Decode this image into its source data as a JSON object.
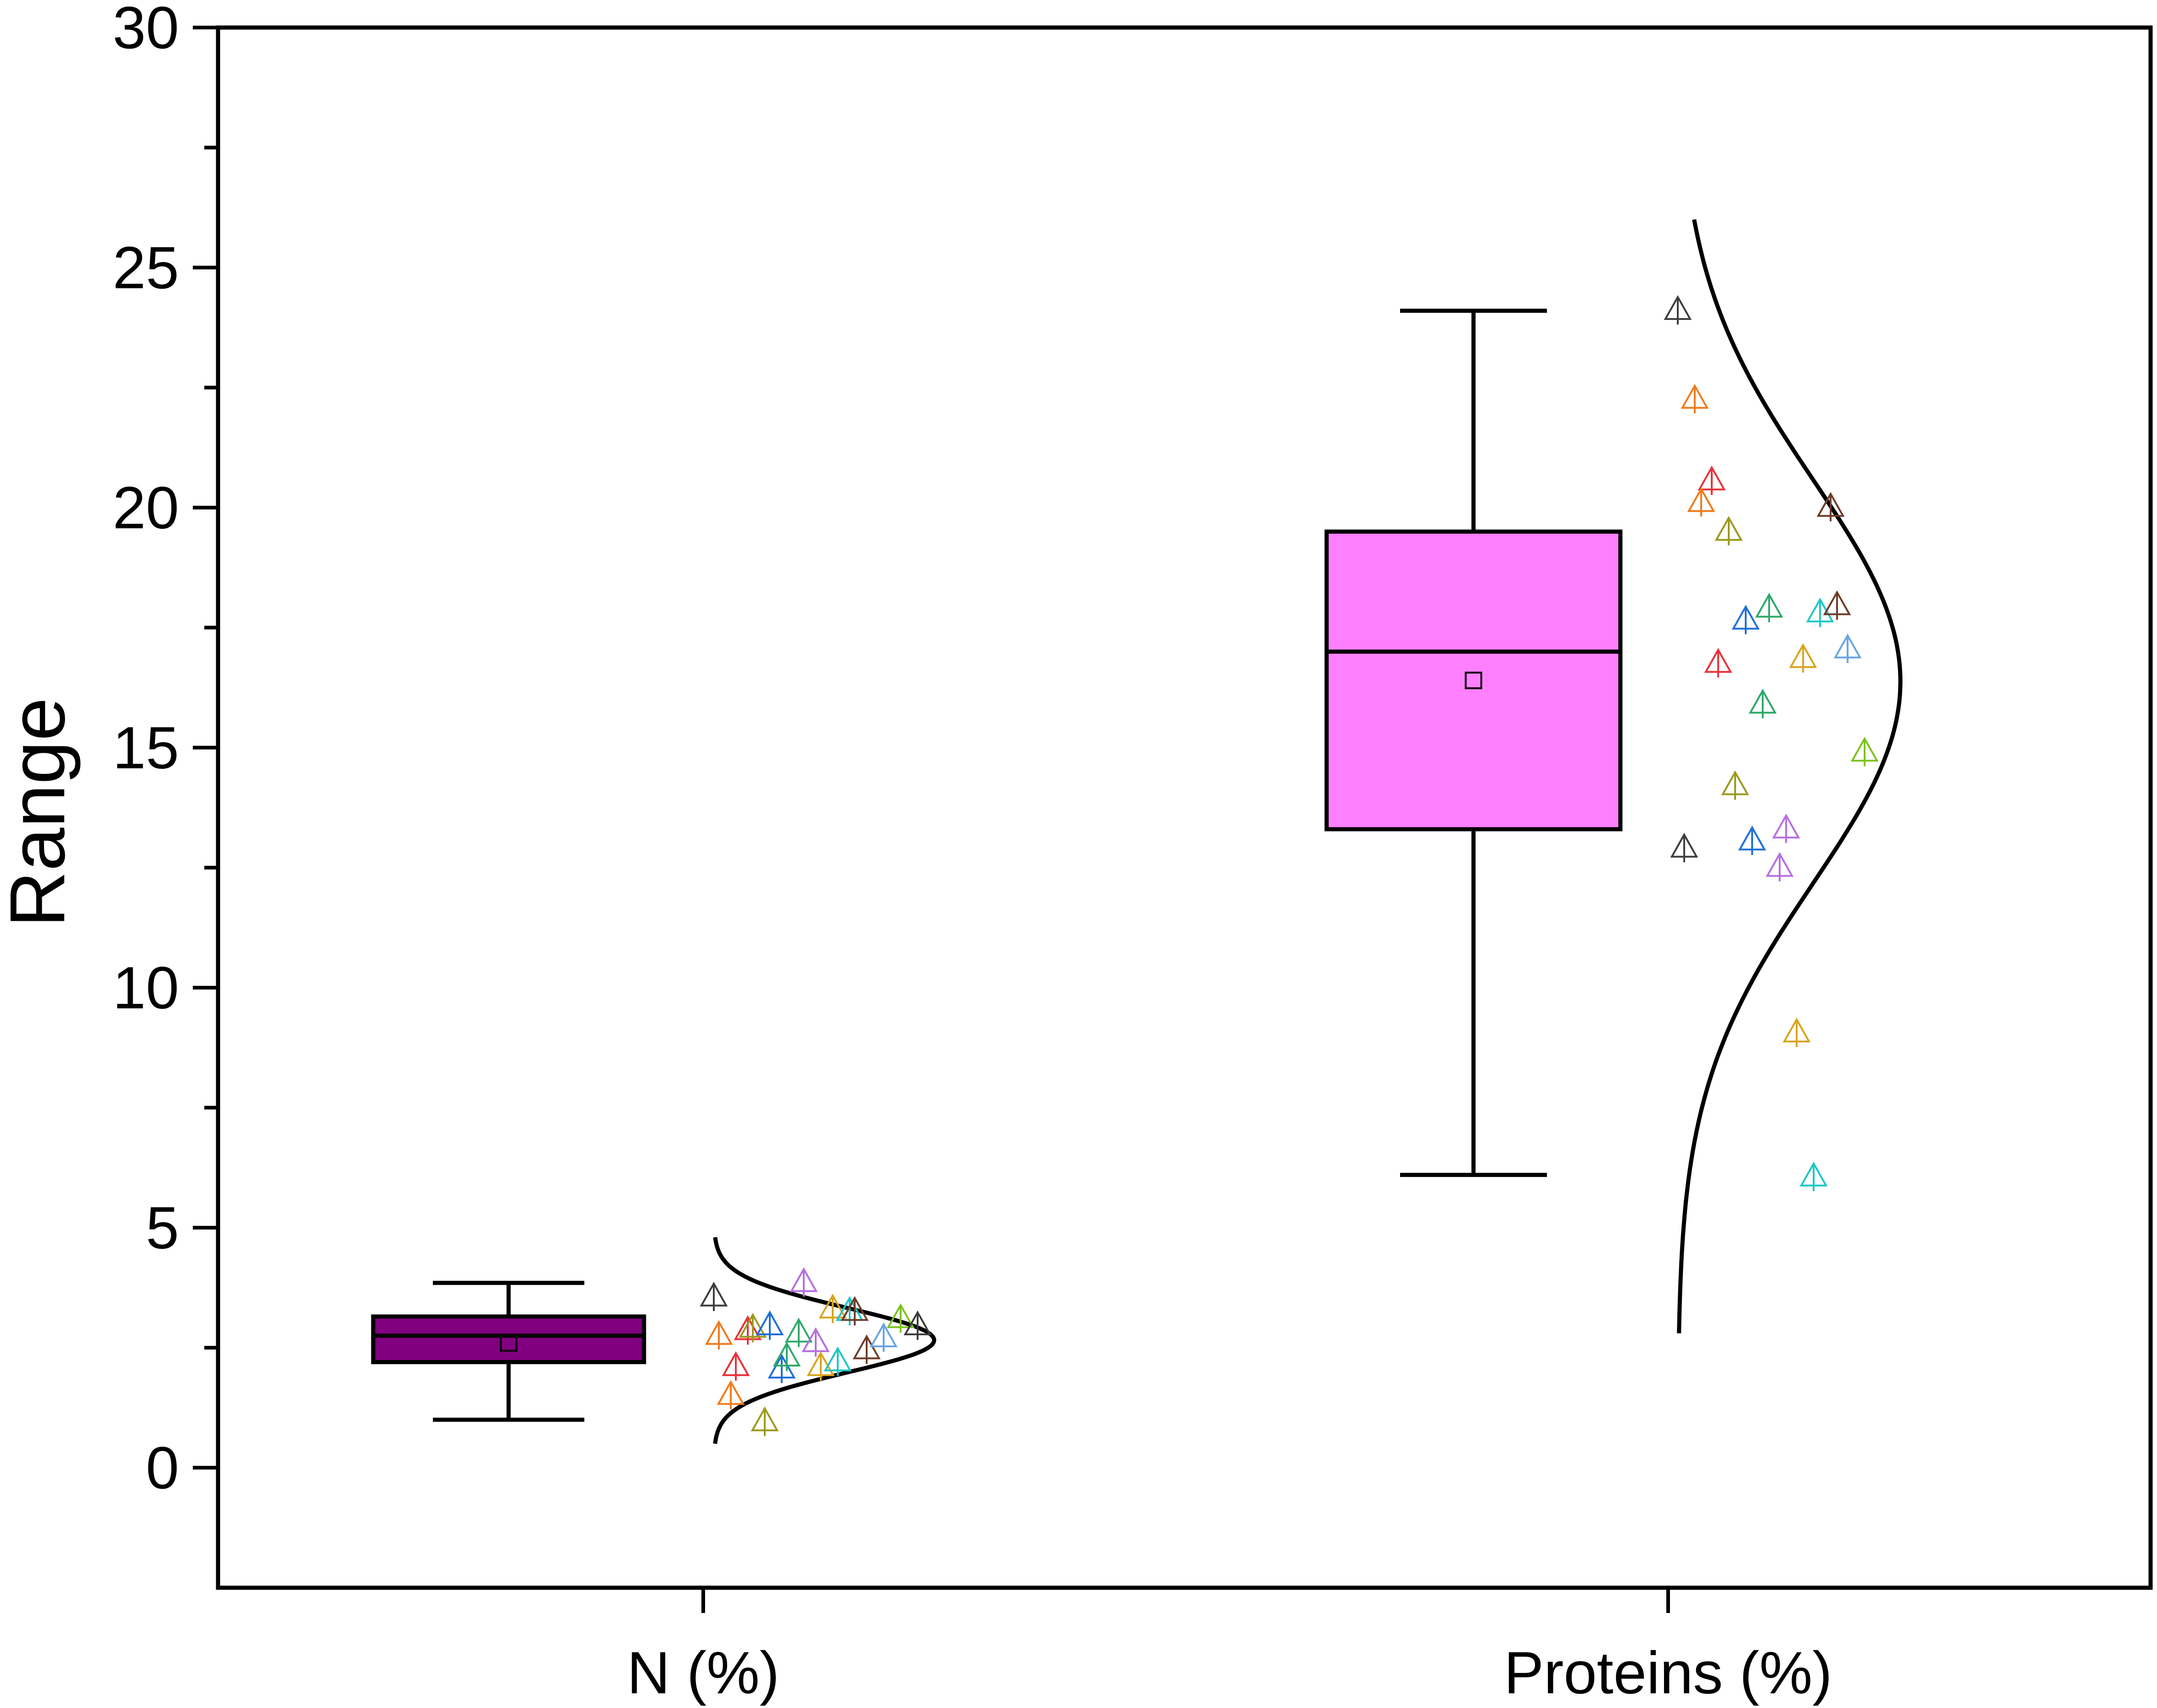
{
  "chart_data": {
    "type": "box",
    "ylabel": "Range",
    "ylim": [
      -2.5,
      30
    ],
    "yticks": [
      "0",
      "5",
      "10",
      "15",
      "20",
      "25",
      "30"
    ],
    "categories": [
      "N (%)",
      "Proteins (%)"
    ],
    "grid": false,
    "boxes": [
      {
        "category": "N (%)",
        "fill": "#800080",
        "whisker_low": 1.0,
        "q1": 2.2,
        "median": 2.75,
        "q3": 3.15,
        "whisker_high": 3.85,
        "mean": 2.6,
        "points": [
          3.55,
          1.5,
          2.85,
          0.95,
          2.05,
          2.8,
          2.6,
          3.3,
          3.25,
          2.45,
          2.7,
          3.1,
          2.95,
          2.75,
          2.1,
          2.9,
          2.95,
          2.3,
          3.85,
          2.1,
          2.2,
          3.25
        ]
      },
      {
        "category": "Proteins (%)",
        "fill": "#ff80ff",
        "whisker_low": 6.1,
        "q1": 13.3,
        "median": 17.0,
        "q3": 19.5,
        "whisker_high": 24.1,
        "mean": 16.4,
        "points": [
          24.1,
          22.25,
          20.55,
          19.5,
          17.65,
          15.9,
          12.5,
          9.05,
          6.05,
          20.0,
          17.05,
          14.9,
          12.9,
          20.1,
          16.75,
          14.2,
          13.05,
          17.9,
          13.3,
          16.85,
          17.8,
          17.95
        ]
      }
    ],
    "point_colors": [
      "#3d3d3d",
      "#f07a1a",
      "#e8313b",
      "#9a9a1e",
      "#1f6fd6",
      "#2ea86a",
      "#b56fe0",
      "#d9a41c",
      "#1ec6c6",
      "#6d3d2a",
      "#6aa5e0",
      "#7cc21f"
    ]
  }
}
